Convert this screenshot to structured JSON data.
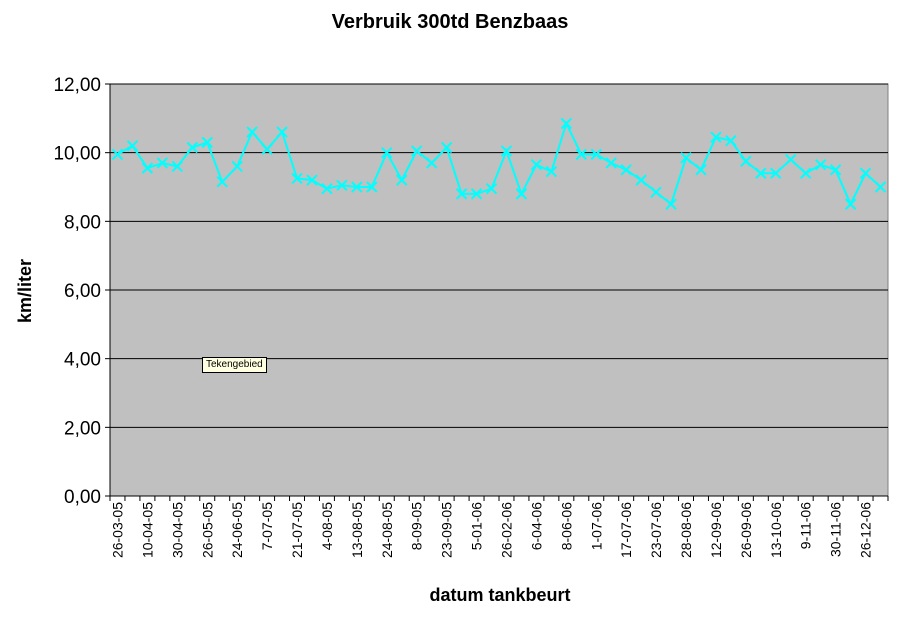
{
  "chart_data": {
    "type": "line",
    "title": "Verbruik 300td Benzbaas",
    "xlabel": "datum tankbeurt",
    "ylabel": "km/liter",
    "ylim": [
      0,
      12
    ],
    "yticks": [
      "0,00",
      "2,00",
      "4,00",
      "6,00",
      "8,00",
      "10,00",
      "12,00"
    ],
    "grid": true,
    "legend": "none",
    "plot_background": "#c0c0c0",
    "series_color": "#00ffff",
    "tick_labels": [
      "26-03-05",
      "10-04-05",
      "30-04-05",
      "26-05-05",
      "24-06-05",
      "7-07-05",
      "21-07-05",
      "4-08-05",
      "13-08-05",
      "24-08-05",
      "8-09-05",
      "23-09-05",
      "5-01-06",
      "26-02-06",
      "6-04-06",
      "8-06-06",
      "1-07-06",
      "17-07-06",
      "23-07-06",
      "28-08-06",
      "12-09-06",
      "26-09-06",
      "13-10-06",
      "9-11-06",
      "30-11-06",
      "26-12-06"
    ],
    "series": [
      {
        "values": [
          9.95,
          10.2,
          9.55,
          9.7,
          9.6,
          10.15,
          10.3,
          9.15,
          9.6,
          10.6,
          10.1,
          10.6,
          9.25,
          9.2,
          8.95,
          9.05,
          9.0,
          9.0,
          10.0,
          9.2,
          10.05,
          9.7,
          10.15,
          8.8,
          8.8,
          8.95,
          10.05,
          8.8,
          9.65,
          9.45,
          10.85,
          9.95,
          9.95,
          9.7,
          9.5,
          9.2,
          8.85,
          8.5,
          9.85,
          9.5,
          10.45,
          10.35,
          9.75,
          9.4,
          9.4,
          9.8,
          9.4,
          9.65,
          9.5,
          8.5,
          9.4,
          9.0
        ]
      }
    ]
  },
  "tooltip": "Tekengebied"
}
